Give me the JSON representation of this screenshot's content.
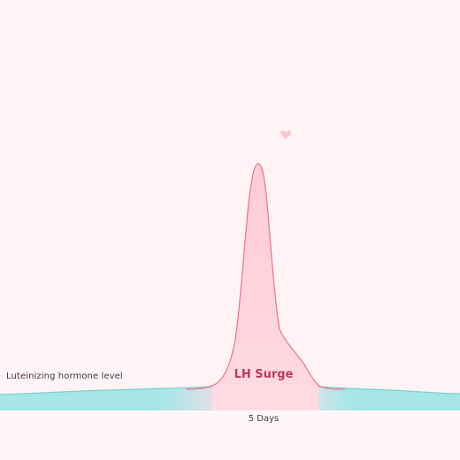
{
  "labels": {
    "hormone_level": "Luteinizing hormone level",
    "surge": "LH Surge",
    "duration": "5 Days"
  },
  "icons": {
    "heart": "heart-icon"
  },
  "colors": {
    "background": "#fff3f6",
    "baseline_band": "#a3e3e3",
    "baseline_line": "#7fcfcf",
    "surge_fill": "#ffd3dd",
    "surge_stroke": "#e57d96",
    "surge_text": "#b83a5e",
    "heart": "#ffb8c8"
  }
}
